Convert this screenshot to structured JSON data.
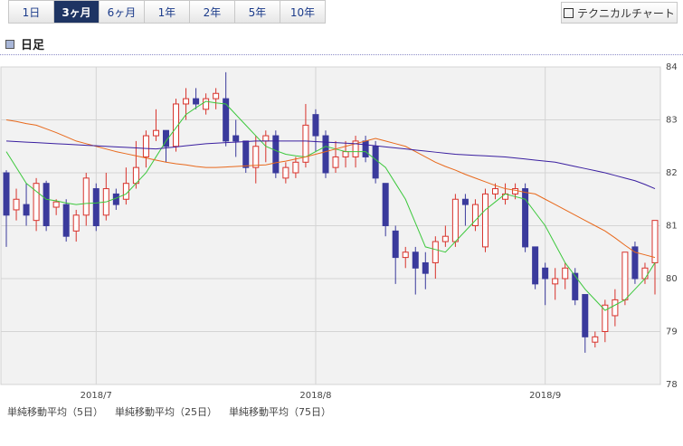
{
  "tabs": {
    "items": [
      "1日",
      "3ヶ月",
      "6ヶ月",
      "1年",
      "2年",
      "5年",
      "10年"
    ],
    "active": 1
  },
  "button": "テクニカルチャート",
  "section_title": "日足",
  "chart_data": {
    "type": "candlestick",
    "categories": [
      null,
      null,
      null,
      null,
      null,
      null,
      null,
      null,
      null,
      "2018/7",
      null,
      null,
      null,
      null,
      null,
      null,
      null,
      null,
      null,
      null,
      null,
      null,
      null,
      null,
      null,
      null,
      null,
      null,
      null,
      null,
      null,
      "2018/8",
      null,
      null,
      null,
      null,
      null,
      null,
      null,
      null,
      null,
      null,
      null,
      null,
      null,
      null,
      null,
      null,
      null,
      null,
      null,
      null,
      null,
      null,
      "2018/9",
      null,
      null,
      null,
      null,
      null,
      null,
      null,
      null,
      null,
      null,
      null
    ],
    "open": [
      82.0,
      81.3,
      81.4,
      81.1,
      81.8,
      81.35,
      81.4,
      80.9,
      81.2,
      81.7,
      81.2,
      81.6,
      81.5,
      81.8,
      82.3,
      82.7,
      82.8,
      82.5,
      83.3,
      83.4,
      83.2,
      83.4,
      83.4,
      82.7,
      82.6,
      82.1,
      82.6,
      82.7,
      81.9,
      82.0,
      82.2,
      83.1,
      82.7,
      82.1,
      82.3,
      82.3,
      82.6,
      82.5,
      81.8,
      80.9,
      80.4,
      80.5,
      80.3,
      80.3,
      80.7,
      80.7,
      81.5,
      81.0,
      80.6,
      81.6,
      81.5,
      81.6,
      81.7,
      80.6,
      80.2,
      79.9,
      80.0,
      80.1,
      79.7,
      78.8,
      79.0,
      79.3,
      79.6,
      80.6,
      80.0,
      80.3
    ],
    "high": [
      82.05,
      81.7,
      81.8,
      81.9,
      81.85,
      81.5,
      81.5,
      81.3,
      82.0,
      81.8,
      82.0,
      81.7,
      82.1,
      82.6,
      82.8,
      83.2,
      82.8,
      83.4,
      83.6,
      83.6,
      83.5,
      83.6,
      83.9,
      83.0,
      82.6,
      82.7,
      82.8,
      82.8,
      82.2,
      82.3,
      83.3,
      83.2,
      82.8,
      82.6,
      82.6,
      82.7,
      82.7,
      82.6,
      81.8,
      81.0,
      80.6,
      80.6,
      80.5,
      80.8,
      81.0,
      81.6,
      81.6,
      81.5,
      81.7,
      81.8,
      81.8,
      81.8,
      81.8,
      80.6,
      80.3,
      80.2,
      80.3,
      80.2,
      79.7,
      79.0,
      79.6,
      79.8,
      80.5,
      80.7,
      80.3,
      81.1
    ],
    "low": [
      80.6,
      81.1,
      81.0,
      80.9,
      80.9,
      81.2,
      80.7,
      80.7,
      81.0,
      80.9,
      81.1,
      81.3,
      81.4,
      81.7,
      82.1,
      82.6,
      82.2,
      82.4,
      83.0,
      83.2,
      83.1,
      83.2,
      82.5,
      82.3,
      82.0,
      81.8,
      82.2,
      81.9,
      81.8,
      81.9,
      82.1,
      82.4,
      81.9,
      82.0,
      82.1,
      82.1,
      82.2,
      81.8,
      80.8,
      79.9,
      80.2,
      79.7,
      79.8,
      80.0,
      80.6,
      80.6,
      81.0,
      80.9,
      80.5,
      81.5,
      81.4,
      81.5,
      80.5,
      79.8,
      79.5,
      79.6,
      79.8,
      79.5,
      78.6,
      78.7,
      78.8,
      79.1,
      79.5,
      79.9,
      79.9,
      79.7
    ],
    "close": [
      81.2,
      81.5,
      81.2,
      81.8,
      81.0,
      81.45,
      80.8,
      81.2,
      81.9,
      81.0,
      81.7,
      81.4,
      81.8,
      82.1,
      82.7,
      82.8,
      82.5,
      83.3,
      83.4,
      83.3,
      83.4,
      83.5,
      82.6,
      82.6,
      82.1,
      82.5,
      82.7,
      82.0,
      82.1,
      82.2,
      82.9,
      82.7,
      82.0,
      82.3,
      82.4,
      82.6,
      82.3,
      81.9,
      81.0,
      80.4,
      80.5,
      80.2,
      80.1,
      80.7,
      80.8,
      81.5,
      81.4,
      81.4,
      81.6,
      81.7,
      81.6,
      81.7,
      80.6,
      79.9,
      80.0,
      80.0,
      80.2,
      79.6,
      78.9,
      78.9,
      79.5,
      79.6,
      80.5,
      80.0,
      80.2,
      81.1
    ],
    "up_color": "#d8322b",
    "down_color": "#3a3a9c",
    "series": [
      {
        "name": "単純移動平均（5日）",
        "color": "#3cc83c",
        "values": [
          82.4,
          82.1,
          81.8,
          81.65,
          81.5,
          81.47,
          81.43,
          81.4,
          81.42,
          81.43,
          81.45,
          81.52,
          81.6,
          81.8,
          82.0,
          82.3,
          82.6,
          82.85,
          83.1,
          83.23,
          83.35,
          83.32,
          83.3,
          83.1,
          82.9,
          82.7,
          82.5,
          82.42,
          82.35,
          82.32,
          82.3,
          82.4,
          82.5,
          82.45,
          82.4,
          82.4,
          82.4,
          82.25,
          82.1,
          81.8,
          81.5,
          81.05,
          80.6,
          80.55,
          80.5,
          80.7,
          80.9,
          81.1,
          81.3,
          81.45,
          81.6,
          81.55,
          81.5,
          81.25,
          81.0,
          80.65,
          80.3,
          80.05,
          79.8,
          79.6,
          79.4,
          79.5,
          79.6,
          79.8,
          80.0,
          80.3
        ]
      },
      {
        "name": "単純移動平均（25日）",
        "color": "#e8691c",
        "values": [
          83.0,
          82.97,
          82.93,
          82.9,
          82.83,
          82.76,
          82.68,
          82.6,
          82.55,
          82.5,
          82.45,
          82.4,
          82.36,
          82.32,
          82.28,
          82.24,
          82.2,
          82.17,
          82.15,
          82.12,
          82.1,
          82.1,
          82.11,
          82.12,
          82.13,
          82.14,
          82.15,
          82.19,
          82.22,
          82.26,
          82.3,
          82.35,
          82.4,
          82.45,
          82.5,
          82.55,
          82.6,
          82.65,
          82.6,
          82.55,
          82.5,
          82.4,
          82.3,
          82.2,
          82.12,
          82.05,
          81.97,
          81.9,
          81.83,
          81.76,
          81.7,
          81.67,
          81.63,
          81.6,
          81.5,
          81.4,
          81.3,
          81.2,
          81.1,
          81.0,
          80.9,
          80.77,
          80.63,
          80.5,
          80.45,
          80.4
        ]
      },
      {
        "name": "単純移動平均（75日）",
        "color": "#3a1fa0",
        "values": [
          82.6,
          82.59,
          82.58,
          82.57,
          82.56,
          82.55,
          82.54,
          82.53,
          82.52,
          82.51,
          82.5,
          82.49,
          82.48,
          82.47,
          82.46,
          82.45,
          82.47,
          82.49,
          82.51,
          82.53,
          82.55,
          82.56,
          82.57,
          82.58,
          82.59,
          82.6,
          82.6,
          82.6,
          82.6,
          82.6,
          82.6,
          82.59,
          82.58,
          82.57,
          82.56,
          82.55,
          82.53,
          82.51,
          82.49,
          82.47,
          82.45,
          82.43,
          82.41,
          82.39,
          82.37,
          82.35,
          82.34,
          82.33,
          82.32,
          82.31,
          82.3,
          82.28,
          82.26,
          82.24,
          82.22,
          82.2,
          82.16,
          82.12,
          82.08,
          82.04,
          82.0,
          81.95,
          81.9,
          81.85,
          81.78,
          81.7
        ]
      }
    ],
    "ylim": [
      78,
      84
    ],
    "yticks": [
      78,
      79,
      80,
      81,
      82,
      83,
      84
    ],
    "grid": true
  }
}
